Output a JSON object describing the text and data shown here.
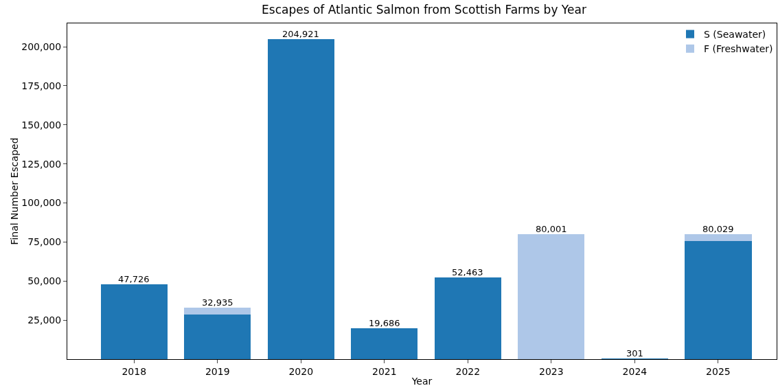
{
  "chart_data": {
    "type": "bar",
    "title": "Escapes of Atlantic Salmon from Scottish Farms by Year",
    "xlabel": "Year",
    "ylabel": "Final Number Escaped",
    "categories": [
      "2018",
      "2019",
      "2020",
      "2021",
      "2022",
      "2023",
      "2024",
      "2025"
    ],
    "stacked": true,
    "series": [
      {
        "name": "S (Seawater)",
        "color": "#1f77b4",
        "values": [
          47726,
          28500,
          204921,
          19686,
          52463,
          0,
          301,
          75500
        ]
      },
      {
        "name": "F (Freshwater)",
        "color": "#aec7e8",
        "values": [
          0,
          4435,
          0,
          0,
          0,
          80001,
          0,
          4529
        ]
      }
    ],
    "totals": [
      "47,726",
      "32,935",
      "204,921",
      "19,686",
      "52,463",
      "80,001",
      "301",
      "80,029"
    ],
    "ylim": [
      0,
      215000
    ],
    "yticks": [
      {
        "value": 25000,
        "label": "25,000"
      },
      {
        "value": 50000,
        "label": "50,000"
      },
      {
        "value": 75000,
        "label": "75,000"
      },
      {
        "value": 100000,
        "label": "100,000"
      },
      {
        "value": 125000,
        "label": "125,000"
      },
      {
        "value": 150000,
        "label": "150,000"
      },
      {
        "value": 175000,
        "label": "175,000"
      },
      {
        "value": 200000,
        "label": "200,000"
      }
    ],
    "grid": false,
    "legend": "top right"
  }
}
